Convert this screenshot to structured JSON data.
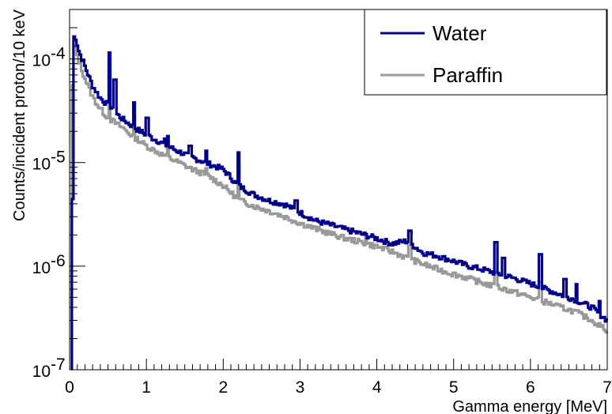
{
  "chart_data": {
    "type": "line",
    "xlabel": "Gamma energy [MeV]",
    "ylabel": "Counts/incident proton/10 keV",
    "xlim": [
      0,
      7
    ],
    "ylim": [
      1e-07,
      0.0003
    ],
    "yscale": "log",
    "grid": false,
    "legend_position": "top-right",
    "x_ticks": [
      "0",
      "1",
      "2",
      "3",
      "4",
      "5",
      "6",
      "7"
    ],
    "y_ticks": [
      {
        "base": "10",
        "exp": "-7"
      },
      {
        "base": "10",
        "exp": "-6"
      },
      {
        "base": "10",
        "exp": "-5"
      },
      {
        "base": "10",
        "exp": "-4"
      }
    ],
    "series": [
      {
        "name": "Water",
        "color": "#00008b",
        "baseline": [
          [
            0.03,
            1.2e-07
          ],
          [
            0.05,
            0.000165
          ],
          [
            0.08,
            0.00016
          ],
          [
            0.12,
            0.00012
          ],
          [
            0.2,
            8.5e-05
          ],
          [
            0.3,
            5.5e-05
          ],
          [
            0.4,
            4.2e-05
          ],
          [
            0.5,
            3.6e-05
          ],
          [
            0.6,
            3e-05
          ],
          [
            0.7,
            2.6e-05
          ],
          [
            0.8,
            2.3e-05
          ],
          [
            0.9,
            2.05e-05
          ],
          [
            1.0,
            1.85e-05
          ],
          [
            1.2,
            1.55e-05
          ],
          [
            1.4,
            1.3e-05
          ],
          [
            1.6,
            1.12e-05
          ],
          [
            1.8,
            9.8e-06
          ],
          [
            2.0,
            8.6e-06
          ],
          [
            2.2,
            6e-06
          ],
          [
            2.4,
            4.9e-06
          ],
          [
            2.6,
            4.3e-06
          ],
          [
            2.8,
            3.95e-06
          ],
          [
            3.0,
            3.3e-06
          ],
          [
            3.2,
            2.75e-06
          ],
          [
            3.4,
            2.5e-06
          ],
          [
            3.6,
            2.25e-06
          ],
          [
            3.8,
            2.05e-06
          ],
          [
            4.0,
            1.85e-06
          ],
          [
            4.2,
            1.65e-06
          ],
          [
            4.4,
            1.75e-06
          ],
          [
            4.6,
            1.35e-06
          ],
          [
            4.8,
            1.25e-06
          ],
          [
            5.0,
            1.12e-06
          ],
          [
            5.2,
            1e-06
          ],
          [
            5.4,
            9.2e-07
          ],
          [
            5.6,
            8.4e-07
          ],
          [
            5.8,
            7.6e-07
          ],
          [
            6.0,
            6.8e-07
          ],
          [
            6.2,
            6e-07
          ],
          [
            6.4,
            5.3e-07
          ],
          [
            6.6,
            4.7e-07
          ],
          [
            6.8,
            4e-07
          ],
          [
            7.0,
            3e-07
          ]
        ],
        "peaks": [
          [
            0.511,
            0.000115
          ],
          [
            0.59,
            6.3e-05
          ],
          [
            0.84,
            3.8e-05
          ],
          [
            1.01,
            2.7e-05
          ],
          [
            1.24,
            1.7e-05
          ],
          [
            1.28,
            1.8e-05
          ],
          [
            1.57,
            1.45e-05
          ],
          [
            1.78,
            1.3e-05
          ],
          [
            2.2,
            1.25e-05
          ],
          [
            2.95,
            4.3e-06
          ],
          [
            4.43,
            2.2e-06
          ],
          [
            5.55,
            1.7e-06
          ],
          [
            5.65,
            1.2e-06
          ],
          [
            6.13,
            1.3e-06
          ],
          [
            6.45,
            7.5e-07
          ],
          [
            6.6,
            6.7e-07
          ],
          [
            6.9,
            4.6e-07
          ]
        ]
      },
      {
        "name": "Paraffin",
        "color": "#999999",
        "baseline": [
          [
            0.03,
            3.5e-05
          ],
          [
            0.06,
            0.00013
          ],
          [
            0.08,
            0.000125
          ],
          [
            0.12,
            9.5e-05
          ],
          [
            0.2,
            6.5e-05
          ],
          [
            0.3,
            4.3e-05
          ],
          [
            0.4,
            3.3e-05
          ],
          [
            0.5,
            2.7e-05
          ],
          [
            0.6,
            2.4e-05
          ],
          [
            0.7,
            2.15e-05
          ],
          [
            0.8,
            1.85e-05
          ],
          [
            0.9,
            1.65e-05
          ],
          [
            1.0,
            1.45e-05
          ],
          [
            1.2,
            1.2e-05
          ],
          [
            1.4,
            1.02e-05
          ],
          [
            1.6,
            8.6e-06
          ],
          [
            1.8,
            7.5e-06
          ],
          [
            2.0,
            6e-06
          ],
          [
            2.2,
            4.4e-06
          ],
          [
            2.4,
            3.8e-06
          ],
          [
            2.6,
            3.4e-06
          ],
          [
            2.8,
            3e-06
          ],
          [
            3.0,
            2.6e-06
          ],
          [
            3.2,
            2.3e-06
          ],
          [
            3.4,
            2.05e-06
          ],
          [
            3.6,
            1.85e-06
          ],
          [
            3.8,
            1.7e-06
          ],
          [
            4.0,
            1.55e-06
          ],
          [
            4.2,
            1.38e-06
          ],
          [
            4.4,
            1.2e-06
          ],
          [
            4.6,
            1.05e-06
          ],
          [
            4.8,
            9.3e-07
          ],
          [
            5.0,
            8.4e-07
          ],
          [
            5.2,
            7.6e-07
          ],
          [
            5.4,
            6.8e-07
          ],
          [
            5.6,
            6.2e-07
          ],
          [
            5.8,
            5.6e-07
          ],
          [
            6.0,
            5e-07
          ],
          [
            6.2,
            4.5e-07
          ],
          [
            6.4,
            4e-07
          ],
          [
            6.6,
            3.6e-07
          ],
          [
            6.8,
            3e-07
          ],
          [
            7.0,
            2.4e-07
          ]
        ],
        "peaks": [
          [
            0.511,
            8e-05
          ],
          [
            0.84,
            2.8e-05
          ],
          [
            1.28,
            1.35e-05
          ],
          [
            1.78,
            8.8e-06
          ],
          [
            2.2,
            9.5e-06
          ],
          [
            3.86,
            2e-06
          ],
          [
            4.43,
            1.6e-06
          ],
          [
            5.55,
            8.8e-07
          ],
          [
            6.13,
            7e-07
          ]
        ]
      }
    ]
  }
}
